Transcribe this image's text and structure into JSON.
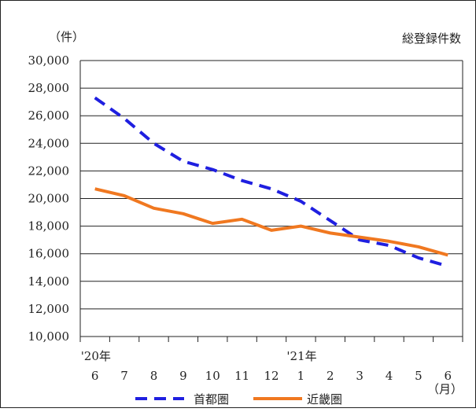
{
  "chart_data": {
    "type": "line",
    "title": "総登録件数",
    "ylabel": "（件）",
    "xlabel": "（月）",
    "ylim": [
      10000,
      30000
    ],
    "yticks": [
      "10,000",
      "12,000",
      "14,000",
      "16,000",
      "18,000",
      "20,000",
      "22,000",
      "24,000",
      "26,000",
      "28,000",
      "30,000"
    ],
    "ytick_values": [
      10000,
      12000,
      14000,
      16000,
      18000,
      20000,
      22000,
      24000,
      26000,
      28000,
      30000
    ],
    "categories": [
      "6",
      "7",
      "8",
      "9",
      "10",
      "11",
      "12",
      "1",
      "2",
      "3",
      "4",
      "5",
      "6"
    ],
    "year_labels": [
      {
        "index": 0,
        "text": "'20年"
      },
      {
        "index": 7,
        "text": "'21年"
      }
    ],
    "grid": true,
    "legend_position": "bottom",
    "series": [
      {
        "name": "首都圏",
        "color": "#1f1fe0",
        "style": "dashed",
        "values": [
          27300,
          25800,
          24000,
          22700,
          22100,
          21300,
          20700,
          19800,
          18400,
          17000,
          16600,
          15700,
          15100
        ]
      },
      {
        "name": "近畿圏",
        "color": "#f07820",
        "style": "solid",
        "values": [
          20700,
          20200,
          19300,
          18900,
          18200,
          18500,
          17700,
          18000,
          17500,
          17200,
          16900,
          16500,
          15900
        ]
      }
    ]
  }
}
